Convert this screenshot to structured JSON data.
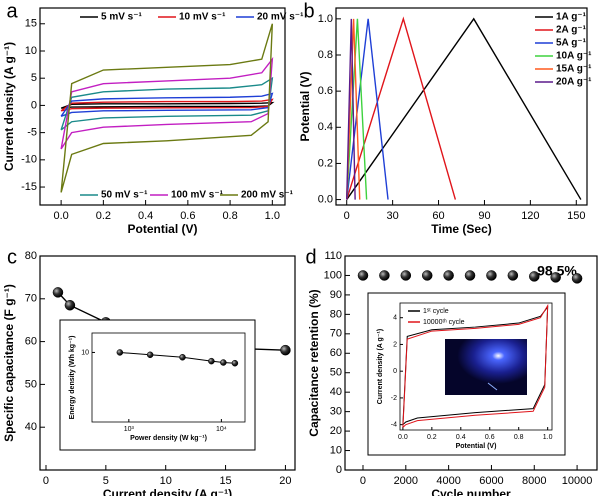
{
  "chart_data": [
    {
      "type": "line",
      "label": "a",
      "x_label": "Potential (V)",
      "y_label": "Current density (A g⁻¹)",
      "xlim": [
        -0.1,
        1.06
      ],
      "ylim": [
        -18.3,
        17.9
      ],
      "xticks": [
        {
          "value": 0,
          "label": "0.0"
        },
        {
          "value": 0.2,
          "label": "0.2"
        },
        {
          "value": 0.4,
          "label": "0.4"
        },
        {
          "value": 0.6,
          "label": "0.6"
        },
        {
          "value": 0.8,
          "label": "0.8"
        },
        {
          "value": 1,
          "label": "1.0"
        }
      ],
      "yticks": [
        -15,
        -10,
        -5,
        0,
        5,
        10,
        15
      ],
      "x": [
        0,
        0.05,
        0.2,
        0.5,
        0.8,
        0.95,
        1.0,
        0.98,
        0.9,
        0.5,
        0.2,
        0.05,
        0
      ],
      "series": [
        {
          "name": "5 mV s⁻¹",
          "color": "#000000",
          "values": [
            -0.5,
            0.2,
            0.3,
            0.3,
            0.35,
            0.4,
            0.5,
            -0.1,
            -0.2,
            -0.2,
            -0.25,
            -0.3,
            -0.5
          ]
        },
        {
          "name": "10 mV s⁻¹",
          "color": "#e0151b",
          "values": [
            -1,
            0.4,
            0.6,
            0.7,
            0.7,
            0.8,
            1.1,
            -0.2,
            -0.4,
            -0.45,
            -0.5,
            -0.6,
            -1
          ]
        },
        {
          "name": "20 mV s⁻¹",
          "color": "#1f3fd6",
          "values": [
            -2,
            0.8,
            1.2,
            1.4,
            1.5,
            1.7,
            2.2,
            -0.4,
            -0.8,
            -0.9,
            -1,
            -1.3,
            -2
          ]
        },
        {
          "name": "50 mV s⁻¹",
          "color": "#1a8a8a",
          "values": [
            -4.5,
            1.5,
            2.5,
            3,
            3.2,
            3.8,
            5,
            -1,
            -1.8,
            -2,
            -2.3,
            -3,
            -4.5
          ]
        },
        {
          "name": "100 mV s⁻¹",
          "color": "#c21fc2",
          "values": [
            -8,
            2.5,
            4,
            4.5,
            5,
            6,
            8.5,
            -1.5,
            -3,
            -3.5,
            -4,
            -5,
            -8
          ]
        },
        {
          "name": "200 mV s⁻¹",
          "color": "#6b7a12",
          "values": [
            -16,
            4,
            6.5,
            7,
            7.5,
            8.5,
            15,
            -3,
            -5.5,
            -6.5,
            -7,
            -9,
            -16
          ]
        }
      ]
    },
    {
      "type": "line",
      "label": "b",
      "x_label": "Time (Sec)",
      "y_label": "Potential (V)",
      "xlim": [
        -7,
        157
      ],
      "ylim": [
        -0.03,
        1.06
      ],
      "xticks": [
        0,
        30,
        60,
        90,
        120,
        150
      ],
      "yticks": [
        {
          "value": 0,
          "label": "0.0"
        },
        {
          "value": 0.2,
          "label": "0.2"
        },
        {
          "value": 0.4,
          "label": "0.4"
        },
        {
          "value": 0.6,
          "label": "0.6"
        },
        {
          "value": 0.8,
          "label": "0.8"
        },
        {
          "value": 1,
          "label": "1.0"
        }
      ],
      "series": [
        {
          "name": "1A g⁻¹",
          "color": "#000000",
          "x": [
            0,
            83,
            153
          ],
          "values": [
            0,
            1,
            0
          ]
        },
        {
          "name": "2A g⁻¹",
          "color": "#e0151b",
          "x": [
            0,
            37,
            71
          ],
          "values": [
            0,
            1,
            0
          ]
        },
        {
          "name": "5A g⁻¹",
          "color": "#1f3fd6",
          "x": [
            0,
            14,
            27
          ],
          "values": [
            0,
            1,
            0
          ]
        },
        {
          "name": "10A g⁻¹",
          "color": "#3ed23e",
          "x": [
            0,
            7,
            13
          ],
          "values": [
            0,
            1,
            0
          ]
        },
        {
          "name": "15A g⁻¹",
          "color": "#ff5a1f",
          "x": [
            0,
            4.5,
            8.5
          ],
          "values": [
            0,
            1,
            0
          ]
        },
        {
          "name": "20A g⁻¹",
          "color": "#5b1a8c",
          "x": [
            0,
            3,
            5.5
          ],
          "values": [
            0,
            1,
            0
          ]
        }
      ]
    },
    {
      "type": "line",
      "label": "c",
      "marker": true,
      "x_label": "Current density (A g⁻¹)",
      "y_label": "Specific capacitance (F g⁻¹)",
      "xlim": [
        -0.5,
        20.8
      ],
      "ylim": [
        30,
        80
      ],
      "xticks": [
        0,
        5,
        10,
        15,
        20
      ],
      "yticks": [
        40,
        50,
        60,
        70,
        80
      ],
      "x": [
        1,
        2,
        5,
        10,
        15,
        20
      ],
      "series": [
        {
          "color": "#000000",
          "values": [
            71.5,
            68.5,
            64.5,
            60,
            58.5,
            58
          ]
        }
      ]
    },
    {
      "type": "scatter",
      "label": "d",
      "x_label": "Cycle number",
      "y_label": "Capacitance retention (%)",
      "annotation": "98.5%",
      "xlim": [
        -840,
        10930
      ],
      "ylim": [
        0,
        110
      ],
      "xticks": [
        0,
        2000,
        4000,
        6000,
        8000,
        10000
      ],
      "yticks": [
        0,
        10,
        20,
        30,
        40,
        50,
        60,
        70,
        80,
        90,
        100,
        110
      ],
      "x": [
        0,
        1000,
        2000,
        3000,
        4000,
        5000,
        6000,
        7000,
        8000,
        9000,
        10000
      ],
      "series": [
        {
          "color": "#000000",
          "values": [
            100,
            100,
            100,
            100,
            100,
            100,
            100,
            100,
            99.5,
            99,
            98.5
          ]
        }
      ]
    },
    {
      "type": "line",
      "marker": true,
      "log_x": true,
      "log_y": true,
      "x_label": "Power density (W kg⁻¹)",
      "y_label": "Energy density (Wh kg⁻¹)",
      "xlim": [
        400,
        18000
      ],
      "ylim": [
        3,
        14
      ],
      "xticks": [
        {
          "value": 1000,
          "label": "10³"
        },
        {
          "value": 10000,
          "label": "10⁴"
        }
      ],
      "yticks": [
        10
      ],
      "x": [
        800,
        1700,
        3800,
        7800,
        10500,
        14000
      ],
      "series": [
        {
          "color": "#000000",
          "values": [
            10,
            9.6,
            9.2,
            8.6,
            8.4,
            8.3
          ]
        }
      ]
    },
    {
      "type": "line",
      "x_label": "Potential (V)",
      "y_label": "Current density (A g⁻¹)",
      "xlim": [
        -0.02,
        1.03
      ],
      "ylim": [
        -4.4,
        5.1
      ],
      "xticks": [
        {
          "value": 0,
          "label": "0.0"
        },
        {
          "value": 0.2,
          "label": "0.2"
        },
        {
          "value": 0.4,
          "label": "0.4"
        },
        {
          "value": 0.6,
          "label": "0.6"
        },
        {
          "value": 0.8,
          "label": "0.8"
        },
        {
          "value": 1,
          "label": "1.0"
        }
      ],
      "yticks": [
        -4,
        -2,
        0,
        2,
        4
      ],
      "x": [
        0,
        0.03,
        0.2,
        0.5,
        0.8,
        0.95,
        1.0,
        0.98,
        0.9,
        0.5,
        0.1,
        0.02,
        0
      ],
      "series": [
        {
          "name": "1ˢᵗ cycle",
          "color": "#000000",
          "values": [
            -4,
            2.6,
            3.1,
            3.3,
            3.6,
            4.1,
            4.8,
            -1,
            -2.8,
            -3.1,
            -3.5,
            -3.8,
            -4
          ]
        },
        {
          "name": "10000ᵗʰ cycle",
          "color": "#e0151b",
          "values": [
            -4.2,
            2.4,
            3.0,
            3.2,
            3.5,
            4.0,
            4.9,
            -1.2,
            -3.0,
            -3.3,
            -3.7,
            -4.0,
            -4.2
          ]
        }
      ]
    }
  ]
}
